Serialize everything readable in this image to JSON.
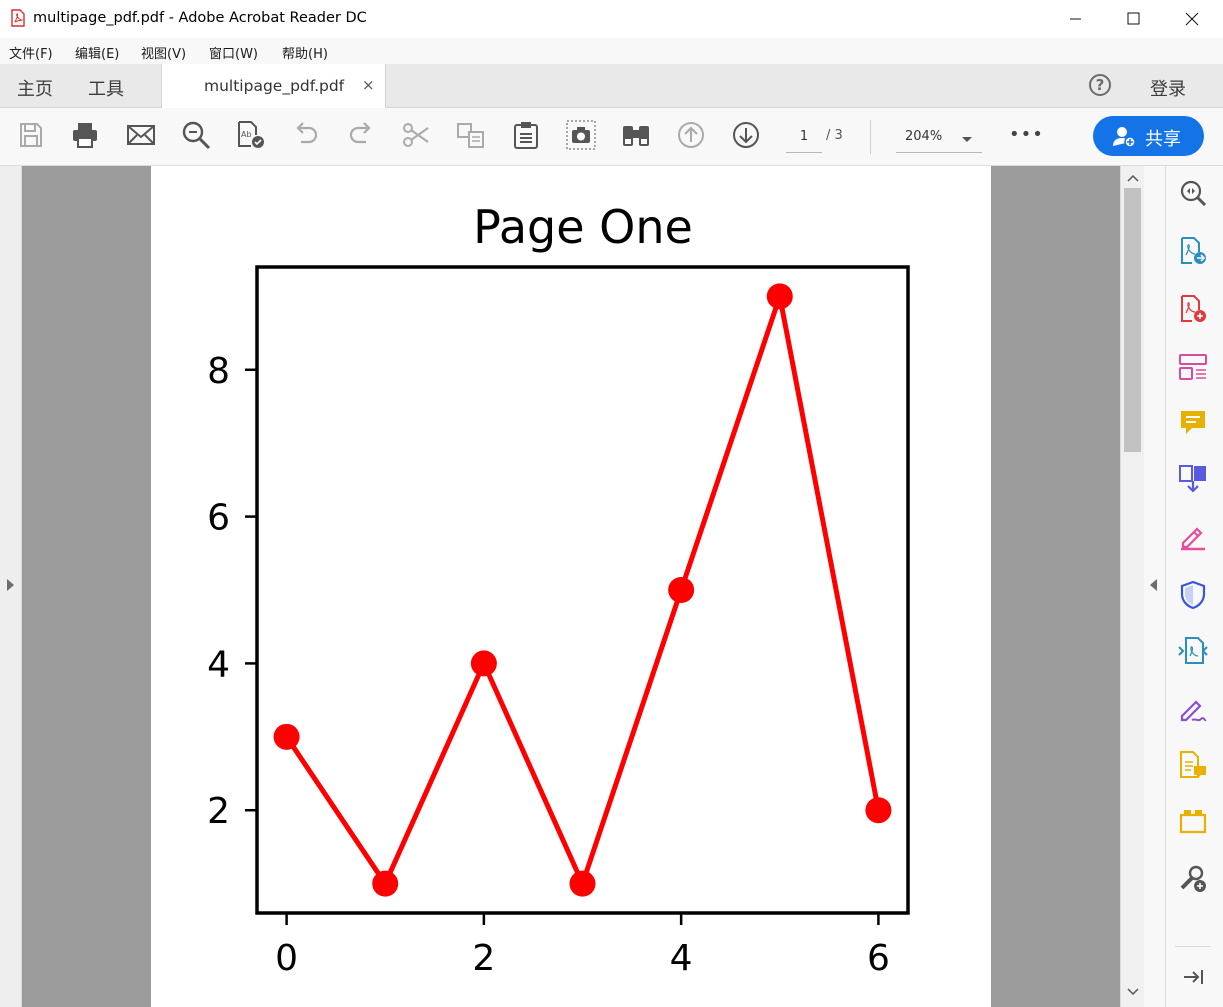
{
  "window": {
    "title": "multipage_pdf.pdf - Adobe Acrobat Reader DC",
    "controls": [
      "minimize-icon",
      "maximize-icon",
      "close-icon"
    ]
  },
  "menu": {
    "items": [
      "文件(F)",
      "编辑(E)",
      "视图(V)",
      "窗口(W)",
      "帮助(H)"
    ]
  },
  "tabs": {
    "home": "主页",
    "tools": "工具",
    "document": "multipage_pdf.pdf",
    "close": "×",
    "help": "?",
    "login": "登录"
  },
  "toolbar": {
    "icons": [
      "save-icon",
      "print-icon",
      "email-icon",
      "search-icon",
      "read-aloud-icon",
      "undo-icon",
      "redo-icon",
      "cut-icon",
      "copy-icon",
      "paste-icon",
      "snapshot-icon",
      "find-icon",
      "page-up-icon",
      "page-down-icon"
    ],
    "page_current": "1",
    "page_total": "/ 3",
    "zoom": "204%",
    "more": "•••",
    "share": "共享"
  },
  "right_tools": {
    "icons": [
      "zoom-tool-icon",
      "export-pdf-icon",
      "create-pdf-icon",
      "organize-pages-icon",
      "comment-icon",
      "combine-files-icon",
      "fill-sign-icon",
      "protect-icon",
      "compress-icon",
      "sign-icon",
      "send-comments-icon",
      "tools-folder-icon",
      "more-tools-icon",
      "collapse-panel-icon"
    ],
    "colors": [
      "#555555",
      "#2a8fbd",
      "#e03a3e",
      "#d84d9b",
      "#e8b100",
      "#5a5ae0",
      "#e84c9b",
      "#3a55d8",
      "#2a8fbd",
      "#8a4fd0",
      "#e8b100",
      "#e8b100",
      "#555555",
      "#555555"
    ]
  },
  "chart_data": {
    "type": "line",
    "title": "Page One",
    "x": [
      0,
      1,
      2,
      3,
      4,
      5,
      6
    ],
    "series": [
      {
        "values": [
          3,
          1,
          4,
          1,
          5,
          9,
          2
        ],
        "color": "#ff0000",
        "marker": "o"
      }
    ],
    "xticks": [
      "0",
      "2",
      "4",
      "6"
    ],
    "yticks": [
      "2",
      "4",
      "6",
      "8"
    ],
    "xlim": [
      -0.3,
      6.3
    ],
    "ylim": [
      0.6,
      9.4
    ],
    "grid": false,
    "xlabel": "",
    "ylabel": ""
  }
}
